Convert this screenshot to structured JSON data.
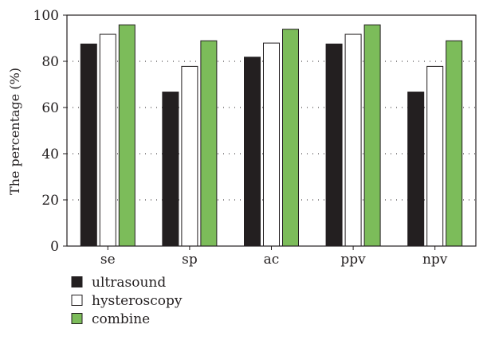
{
  "chart_data": {
    "type": "bar",
    "categories": [
      "se",
      "sp",
      "ac",
      "ppv",
      "npv"
    ],
    "series": [
      {
        "name": "ultrasound",
        "values": [
          87.5,
          66.7,
          81.8,
          87.5,
          66.7
        ]
      },
      {
        "name": "hysteroscopy",
        "values": [
          91.7,
          77.8,
          87.9,
          91.7,
          77.8
        ]
      },
      {
        "name": "combine",
        "values": [
          95.8,
          88.9,
          93.9,
          95.8,
          88.9
        ]
      }
    ],
    "colors": [
      "#231f20",
      "#ffffff",
      "#7cbc5a"
    ],
    "title": "",
    "xlabel": "",
    "ylabel": "The percentage (%)",
    "ylim": [
      0,
      100
    ],
    "yticks": [
      0,
      20,
      40,
      60,
      80,
      100
    ],
    "grid": "dotted horizontal",
    "legend_position": "bottom-left"
  }
}
